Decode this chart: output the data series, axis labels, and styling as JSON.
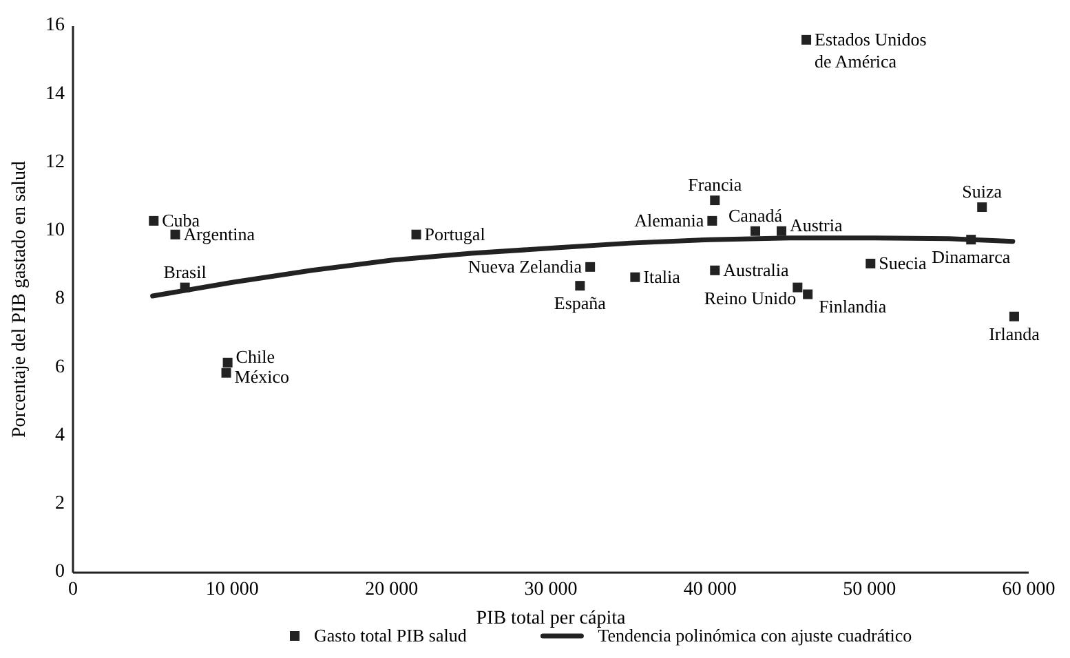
{
  "chart_data": {
    "type": "scatter",
    "xlabel": "PIB total per cápita",
    "ylabel": "Porcentaje del PIB gastado en salud",
    "xlim": [
      0,
      60000
    ],
    "xticks": [
      0,
      {
        "value": 10000,
        "label": "10 000"
      },
      {
        "value": 20000,
        "label": "20 000"
      },
      {
        "value": 30000,
        "label": "30 000"
      },
      {
        "value": 40000,
        "label": "40 000"
      },
      {
        "value": 50000,
        "label": "50 000"
      },
      {
        "value": 60000,
        "label": "60 000"
      }
    ],
    "ylim": [
      0,
      16
    ],
    "yticks": [
      0,
      2,
      4,
      6,
      8,
      10,
      12,
      14,
      16
    ],
    "grid": false,
    "legend": "bottom",
    "series": [
      {
        "name": "Gasto total PIB salud",
        "marker": "square",
        "color": "#222222",
        "x": [
          5070,
          6420,
          7030,
          21550,
          9710,
          9620,
          46040,
          40300,
          40130,
          42840,
          44480,
          57070,
          56380,
          32470,
          31830,
          35290,
          40300,
          45490,
          46130,
          50070,
          59090
        ],
        "values": [
          10.3,
          9.9,
          8.35,
          9.9,
          6.15,
          5.85,
          15.6,
          10.9,
          10.3,
          10.0,
          10.0,
          10.7,
          9.75,
          8.95,
          8.4,
          8.65,
          8.85,
          8.35,
          8.15,
          9.05,
          7.5
        ]
      },
      {
        "name": "Tendencia polinómica con ajuste cuadrático",
        "type": "line",
        "line_style": "solid",
        "color": "#222222",
        "x": [
          5000,
          10000,
          15000,
          20000,
          25000,
          30000,
          35000,
          40000,
          45000,
          50000,
          55000,
          59000
        ],
        "values": [
          8.1,
          8.5,
          8.85,
          9.15,
          9.35,
          9.5,
          9.65,
          9.75,
          9.8,
          9.8,
          9.78,
          9.7
        ]
      }
    ],
    "annotations": [
      {
        "text": "Cuba",
        "x": 5070,
        "y": 10.3
      },
      {
        "text": "Argentina",
        "x": 6420,
        "y": 9.9
      },
      {
        "text": "Brasil",
        "x": 7030,
        "y": 8.35
      },
      {
        "text": "Portugal",
        "x": 21550,
        "y": 9.9
      },
      {
        "text": "Chile",
        "x": 9710,
        "y": 6.15
      },
      {
        "text": "México",
        "x": 9620,
        "y": 5.85
      },
      {
        "text": "Estados Unidos de América",
        "x": 46040,
        "y": 15.6
      },
      {
        "text": "Francia",
        "x": 40300,
        "y": 10.9
      },
      {
        "text": "Alemania",
        "x": 40130,
        "y": 10.3
      },
      {
        "text": "Canadá",
        "x": 42840,
        "y": 10.0
      },
      {
        "text": "Austria",
        "x": 44480,
        "y": 10.0
      },
      {
        "text": "Suiza",
        "x": 57070,
        "y": 10.7
      },
      {
        "text": "Dinamarca",
        "x": 56380,
        "y": 9.75
      },
      {
        "text": "Nueva Zelandia",
        "x": 32470,
        "y": 8.95
      },
      {
        "text": "España",
        "x": 31830,
        "y": 8.4
      },
      {
        "text": "Italia",
        "x": 35290,
        "y": 8.65
      },
      {
        "text": "Australia",
        "x": 40300,
        "y": 8.85
      },
      {
        "text": "Reino Unido",
        "x": 45490,
        "y": 8.35
      },
      {
        "text": "Finlandia",
        "x": 46130,
        "y": 8.15
      },
      {
        "text": "Suecia",
        "x": 50070,
        "y": 9.05
      },
      {
        "text": "Irlanda",
        "x": 59090,
        "y": 7.5
      }
    ]
  }
}
